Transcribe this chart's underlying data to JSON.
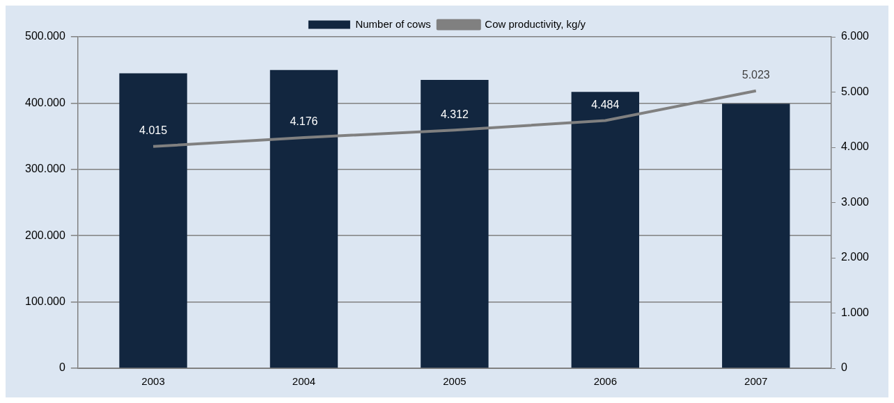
{
  "chart_data": {
    "type": "bar",
    "categories": [
      "2003",
      "2004",
      "2005",
      "2006",
      "2007"
    ],
    "series": [
      {
        "name": "Number of cows",
        "color": "#12263f",
        "values": [
          445000,
          450000,
          435000,
          417000,
          399000
        ]
      },
      {
        "name": "Cow productivity, kg/y",
        "type": "line",
        "axis": "y2",
        "color": "#808080",
        "values": [
          4015,
          4176,
          4312,
          4484,
          5023
        ],
        "value_labels": [
          "4.015",
          "4.176",
          "4.312",
          "4.484",
          "5.023"
        ]
      }
    ],
    "ylim": [
      0,
      500000
    ],
    "yticks": [
      {
        "value": 0,
        "label": "0"
      },
      {
        "value": 100000,
        "label": "100.000"
      },
      {
        "value": 200000,
        "label": "200.000"
      },
      {
        "value": 300000,
        "label": "300.000"
      },
      {
        "value": 400000,
        "label": "400.000"
      },
      {
        "value": 500000,
        "label": "500.000"
      }
    ],
    "y2lim": [
      0,
      6000
    ],
    "y2ticks": [
      {
        "value": 0,
        "label": "0"
      },
      {
        "value": 1000,
        "label": "1.000"
      },
      {
        "value": 2000,
        "label": "2.000"
      },
      {
        "value": 3000,
        "label": "3.000"
      },
      {
        "value": 4000,
        "label": "4.000"
      },
      {
        "value": 5000,
        "label": "5.000"
      },
      {
        "value": 6000,
        "label": "6.000"
      }
    ],
    "grid": "y",
    "legend": "top",
    "marker": "none",
    "line_style": "solid"
  }
}
